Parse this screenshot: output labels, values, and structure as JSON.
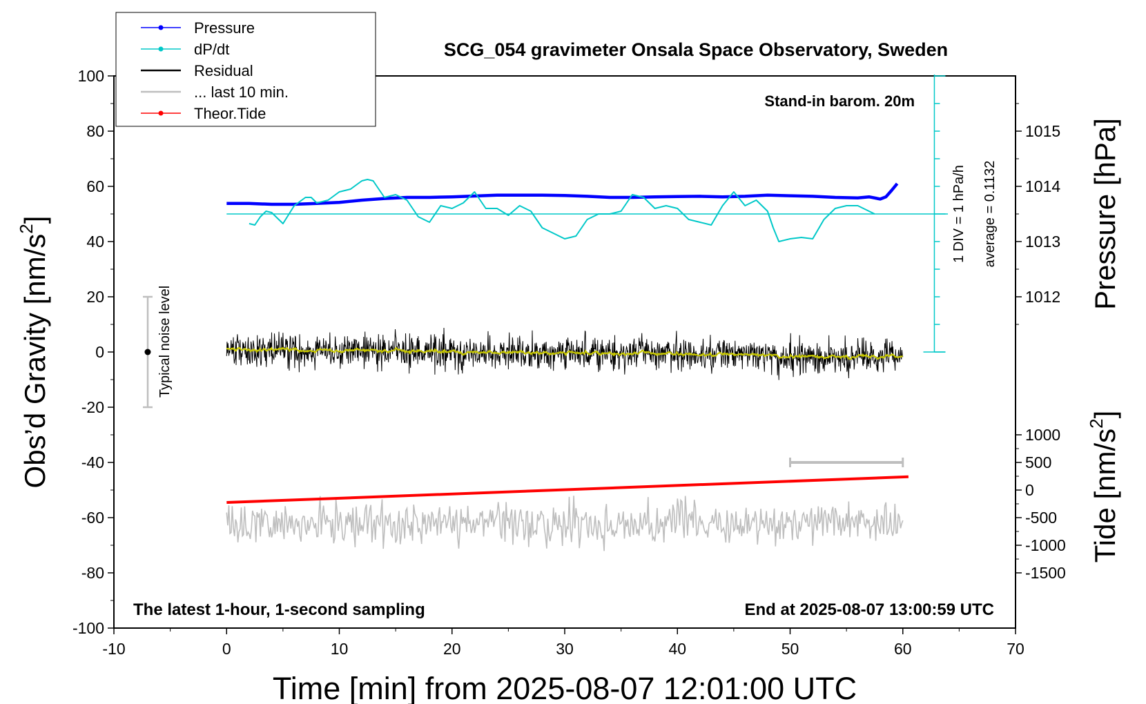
{
  "chart_data": {
    "type": "line",
    "title": "SCG_054 gravimeter Onsala Space Observatory, Sweden",
    "xlabel": "Time [min] from 2025-08-07 12:01:00 UTC",
    "ylabel": "Obs’d Gravity [nm/s",
    "ylabel_sup": "2",
    "ylabel_close": "]",
    "right_pressure_label": "Pressure [hPa]",
    "right_tide_label": "Tide [nm/s",
    "right_tide_sup": "2",
    "right_tide_close": "]",
    "xlim": [
      -10,
      70
    ],
    "ylim": [
      -100,
      100
    ],
    "x_ticks": [
      -10,
      0,
      10,
      20,
      30,
      40,
      50,
      60,
      70
    ],
    "y_ticks": [
      100,
      80,
      60,
      40,
      20,
      0,
      -20,
      -40,
      -60,
      -80,
      -100
    ],
    "pressure_ticks": [
      1015,
      1014,
      1013,
      1012
    ],
    "tide_ticks": [
      1000,
      500,
      0,
      -500,
      -1000,
      -1500
    ],
    "legend_position": "top-left",
    "legend": [
      {
        "label": "Pressure",
        "color": "#0000ff",
        "marker": true
      },
      {
        "label": "dP/dt",
        "color": "#00c8c8",
        "marker": true
      },
      {
        "label": "Residual",
        "color": "#000000",
        "marker": false
      },
      {
        "label": "... last 10 min.",
        "color": "#bebebe",
        "marker": false
      },
      {
        "label": "Theor.Tide",
        "color": "#ff0000",
        "marker": true
      }
    ],
    "annotations": {
      "barometer": "Stand-in barom. 20m",
      "div_label": "1 DIV = 1 hPa/h",
      "average_label": "average = 0.1132",
      "noise_label": "Typical noise level",
      "bottom_left": "The latest 1-hour, 1-second sampling",
      "bottom_right": "End at 2025-08-07 13:00:59 UTC"
    },
    "dpdt_baseline": 50,
    "noise_bar": {
      "x": -7,
      "center": 0,
      "range": [
        -20,
        20
      ]
    },
    "scale_bar": {
      "y": 500,
      "x_range": [
        50,
        60
      ]
    },
    "series": [
      {
        "name": "Pressure",
        "color": "#0000ff",
        "x": [
          0,
          2,
          4,
          6,
          8,
          10,
          12,
          14,
          16,
          18,
          20,
          22,
          24,
          26,
          28,
          30,
          32,
          34,
          36,
          38,
          40,
          42,
          44,
          46,
          48,
          50,
          52,
          54,
          56,
          57,
          58,
          58.5,
          59,
          59.5
        ],
        "y": [
          53.8,
          53.8,
          53.5,
          53.5,
          53.8,
          54.2,
          55,
          55.6,
          56,
          56,
          56.2,
          56.5,
          56.8,
          56.8,
          56.8,
          56.7,
          56.4,
          56,
          56,
          56.2,
          56.3,
          56.4,
          56.2,
          56.4,
          56.8,
          56.6,
          56.4,
          56,
          55.8,
          56.2,
          55.4,
          56.2,
          58.5,
          61
        ]
      },
      {
        "name": "dP/dt",
        "color": "#00c8c8",
        "x": [
          2,
          2.5,
          3,
          3.5,
          4,
          5,
          6,
          7,
          7.5,
          8,
          9,
          10,
          11,
          12,
          12.5,
          13,
          14,
          15,
          16,
          17,
          18,
          19,
          20,
          21,
          22,
          23,
          24,
          25,
          26,
          27,
          28,
          29,
          30,
          31,
          32,
          33,
          34,
          35,
          36,
          37,
          38,
          39,
          40,
          41,
          42,
          43,
          44,
          45,
          46,
          47,
          48,
          48.5,
          49,
          50,
          51,
          52,
          53,
          54,
          55,
          56,
          57,
          57.5
        ],
        "y": [
          46.5,
          46,
          49,
          51,
          50.5,
          46.5,
          53,
          56,
          56,
          54,
          55,
          58,
          59,
          62,
          62.5,
          62,
          56,
          57,
          55,
          49,
          47,
          53,
          52,
          54,
          58,
          52,
          52,
          49.5,
          53,
          51,
          45,
          43,
          41,
          42,
          48,
          50,
          50,
          51,
          57,
          56,
          52,
          53,
          52,
          48,
          47,
          46,
          53,
          58,
          53,
          55,
          51,
          45,
          40,
          41,
          41.5,
          41,
          48,
          52,
          53,
          53,
          51,
          50
        ]
      },
      {
        "name": "Theor.Tide",
        "color": "#ff0000",
        "x": [
          0,
          60.5
        ],
        "y": [
          -54.5,
          -45.2
        ]
      }
    ]
  }
}
